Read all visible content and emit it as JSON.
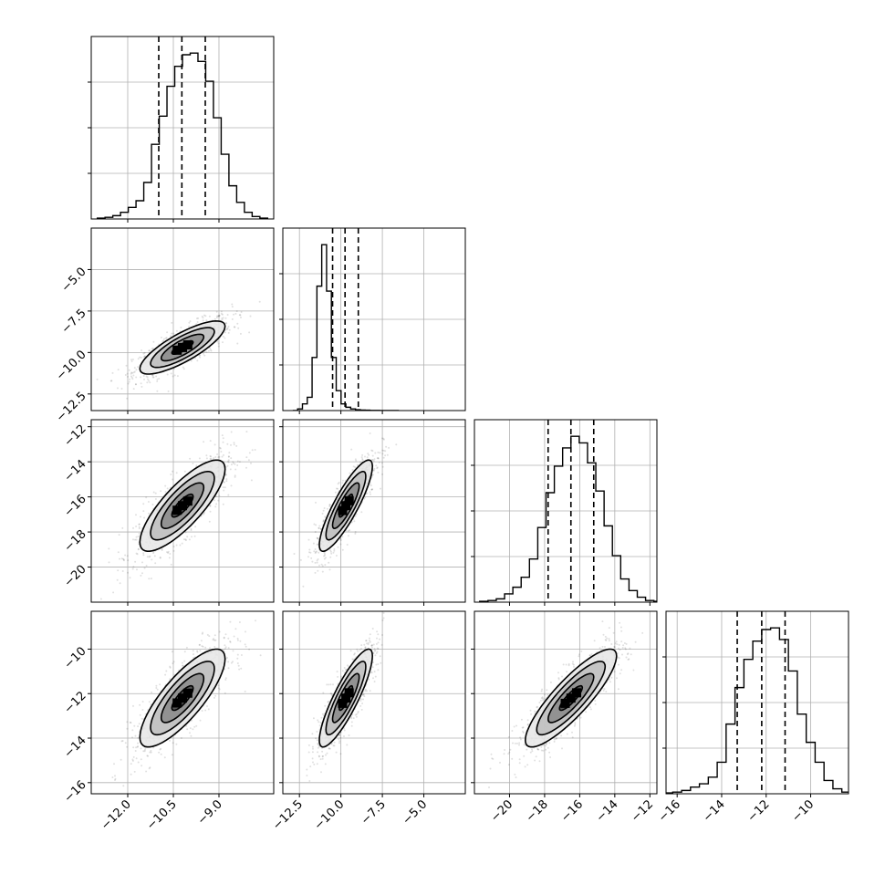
{
  "chart_data": {
    "type": "corner",
    "title": "",
    "parameters": [
      {
        "range": [
          -13.2,
          -7.2
        ],
        "ticks": [
          -12.0,
          -10.5,
          -9.0
        ],
        "tick_labels": [
          "−12.0",
          "−10.5",
          "−9.0"
        ],
        "mean": -10.2,
        "sd": 0.7,
        "quantiles": [
          -10.98,
          -10.22,
          -9.45
        ],
        "hist_counts": [
          0.5,
          1,
          2,
          4,
          7,
          11,
          22,
          45,
          62,
          80,
          92,
          99,
          100,
          95,
          83,
          61,
          39,
          20,
          10,
          4,
          1.5,
          0.5
        ]
      },
      {
        "range": [
          -13.5,
          -2.5
        ],
        "ticks": [
          -12.5,
          -10.0,
          -7.5,
          -5.0
        ],
        "tick_labels": [
          "−12.5",
          "−10.0",
          "−7.5",
          "−5.0"
        ],
        "mean": -9.7,
        "sd": 0.8,
        "quantiles": [
          -10.5,
          -9.75,
          -8.95
        ],
        "hist_counts": [
          0,
          1,
          4,
          8,
          32,
          75,
          100,
          72,
          32,
          12,
          4,
          2,
          1,
          0.5,
          0.3,
          0.2,
          0.1,
          0.1,
          0,
          0,
          0,
          0
        ]
      },
      {
        "range": [
          -22,
          -11.6
        ],
        "ticks": [
          -20,
          -18,
          -16,
          -14,
          -12
        ],
        "tick_labels": [
          "−20",
          "−18",
          "−16",
          "−14",
          "−12"
        ],
        "mean": -16.5,
        "sd": 1.3,
        "quantiles": [
          -17.8,
          -16.5,
          -15.2
        ],
        "hist_counts": [
          0.5,
          1,
          2,
          5,
          9,
          15,
          26,
          45,
          66,
          82,
          93,
          100,
          96,
          84,
          67,
          46,
          28,
          14,
          7,
          3,
          1,
          0.5
        ]
      },
      {
        "range": [
          -16.5,
          -8.3
        ],
        "ticks": [
          -16,
          -14,
          -12,
          -10
        ],
        "tick_labels": [
          "−16",
          "−14",
          "−12",
          "−10"
        ],
        "mean": -12.2,
        "sd": 1.1,
        "quantiles": [
          -13.3,
          -12.2,
          -11.15
        ],
        "hist_counts": [
          0.5,
          1,
          2,
          4,
          6,
          10,
          19,
          42,
          64,
          81,
          92,
          99,
          100,
          93,
          74,
          48,
          31,
          19,
          8,
          3,
          1,
          0.5
        ]
      }
    ],
    "correlations": {
      "1_0": 0.8,
      "2_0": 0.8,
      "2_1": 0.86,
      "3_0": 0.8,
      "3_1": 0.86,
      "3_2": 0.86
    },
    "contour_levels_sigma": [
      0.5,
      1.0,
      1.5,
      2.0
    ],
    "grid": true
  }
}
